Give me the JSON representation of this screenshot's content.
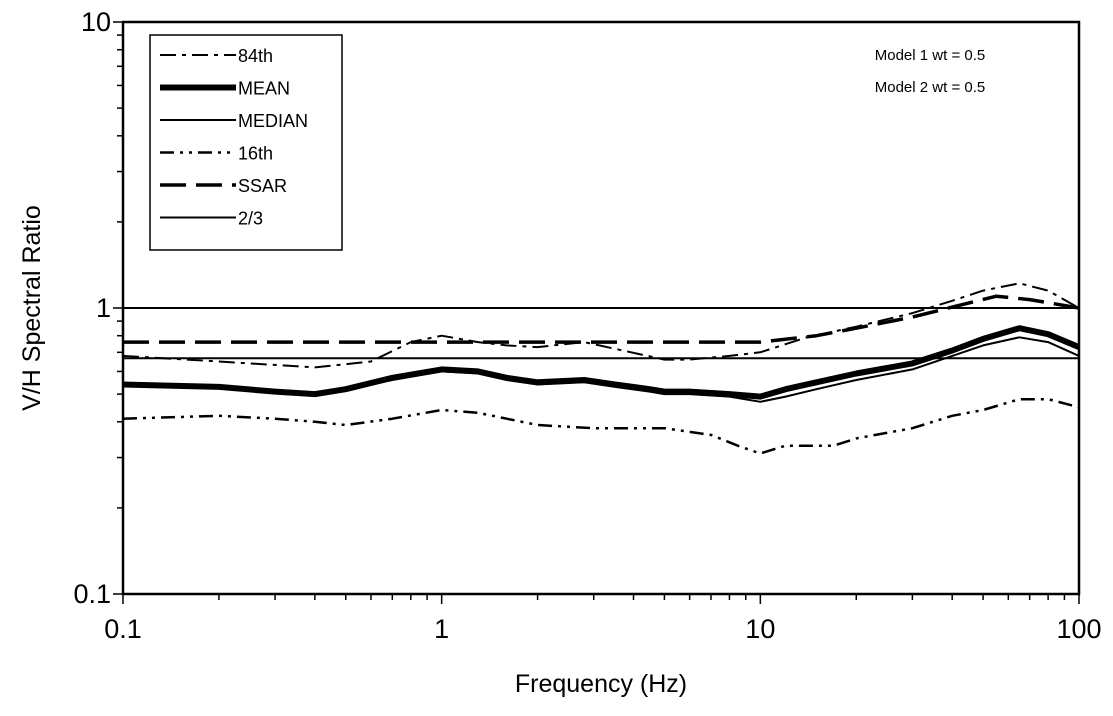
{
  "chart_data": {
    "type": "line",
    "title": "",
    "xlabel": "Frequency (Hz)",
    "ylabel": "V/H Spectral Ratio",
    "xscale": "log",
    "yscale": "log",
    "xlim": [
      0.1,
      100
    ],
    "ylim": [
      0.1,
      10
    ],
    "xticks": [
      {
        "value": 0.1,
        "label": "0.1"
      },
      {
        "value": 1,
        "label": "1"
      },
      {
        "value": 10,
        "label": "10"
      },
      {
        "value": 100,
        "label": "100"
      }
    ],
    "yticks": [
      {
        "value": 0.1,
        "label": "0.1"
      },
      {
        "value": 1,
        "label": "1"
      },
      {
        "value": 10,
        "label": "10"
      }
    ],
    "grid": false,
    "legend_position": "top-left",
    "annotations": [
      "Model 1 wt = 0.5",
      "Model 2 wt = 0.5"
    ],
    "series": [
      {
        "name": "84th",
        "style": "dash-dot",
        "color": "#000000",
        "x": [
          0.1,
          0.2,
          0.4,
          0.6,
          0.8,
          1.0,
          1.3,
          1.6,
          2.0,
          2.8,
          3.5,
          5.0,
          6.0,
          8.0,
          10,
          14,
          20,
          30,
          40,
          50,
          65,
          80,
          100
        ],
        "y": [
          0.68,
          0.65,
          0.62,
          0.65,
          0.76,
          0.8,
          0.76,
          0.74,
          0.73,
          0.76,
          0.72,
          0.66,
          0.66,
          0.68,
          0.7,
          0.79,
          0.86,
          0.96,
          1.06,
          1.15,
          1.22,
          1.15,
          1.0
        ]
      },
      {
        "name": "MEAN",
        "style": "thick",
        "color": "#000000",
        "x": [
          0.1,
          0.2,
          0.3,
          0.4,
          0.5,
          0.7,
          1.0,
          1.3,
          1.6,
          2.0,
          2.8,
          3.5,
          4.5,
          5.0,
          6.0,
          8.0,
          10,
          12,
          15,
          20,
          30,
          40,
          50,
          65,
          80,
          100
        ],
        "y": [
          0.54,
          0.53,
          0.51,
          0.5,
          0.52,
          0.57,
          0.61,
          0.6,
          0.57,
          0.55,
          0.56,
          0.54,
          0.52,
          0.51,
          0.51,
          0.5,
          0.49,
          0.52,
          0.55,
          0.59,
          0.64,
          0.71,
          0.78,
          0.85,
          0.81,
          0.73
        ]
      },
      {
        "name": "MEDIAN",
        "style": "solid",
        "color": "#000000",
        "x": [
          0.1,
          0.2,
          0.3,
          0.4,
          0.5,
          0.7,
          1.0,
          1.3,
          1.6,
          2.0,
          2.8,
          3.5,
          4.5,
          5.0,
          6.0,
          8.0,
          10,
          12,
          15,
          20,
          30,
          40,
          50,
          65,
          80,
          100
        ],
        "y": [
          0.54,
          0.53,
          0.51,
          0.5,
          0.52,
          0.56,
          0.6,
          0.59,
          0.56,
          0.54,
          0.55,
          0.53,
          0.51,
          0.5,
          0.5,
          0.49,
          0.47,
          0.49,
          0.52,
          0.56,
          0.61,
          0.68,
          0.74,
          0.79,
          0.76,
          0.68
        ]
      },
      {
        "name": "16th",
        "style": "dash-dot-dot",
        "color": "#000000",
        "x": [
          0.1,
          0.2,
          0.3,
          0.4,
          0.5,
          0.7,
          1.0,
          1.3,
          1.6,
          2.0,
          3.0,
          5.0,
          7.0,
          8.5,
          10,
          12,
          14,
          17,
          20,
          30,
          40,
          50,
          65,
          80,
          100
        ],
        "y": [
          0.41,
          0.42,
          0.41,
          0.4,
          0.39,
          0.41,
          0.44,
          0.43,
          0.41,
          0.39,
          0.38,
          0.38,
          0.36,
          0.33,
          0.31,
          0.33,
          0.33,
          0.33,
          0.35,
          0.38,
          0.42,
          0.44,
          0.48,
          0.48,
          0.45
        ]
      },
      {
        "name": "SSAR",
        "style": "long-dash",
        "color": "#000000",
        "x": [
          0.1,
          10,
          15,
          20,
          30,
          45,
          55,
          70,
          100
        ],
        "y": [
          0.76,
          0.76,
          0.8,
          0.85,
          0.93,
          1.04,
          1.1,
          1.07,
          1.0
        ]
      },
      {
        "name": "2/3",
        "style": "solid",
        "color": "#000000",
        "x": [
          0.1,
          100
        ],
        "y": [
          0.667,
          0.667
        ]
      }
    ],
    "reference_lines": [
      {
        "y": 1.0,
        "style": "solid",
        "color": "#000000"
      }
    ]
  }
}
